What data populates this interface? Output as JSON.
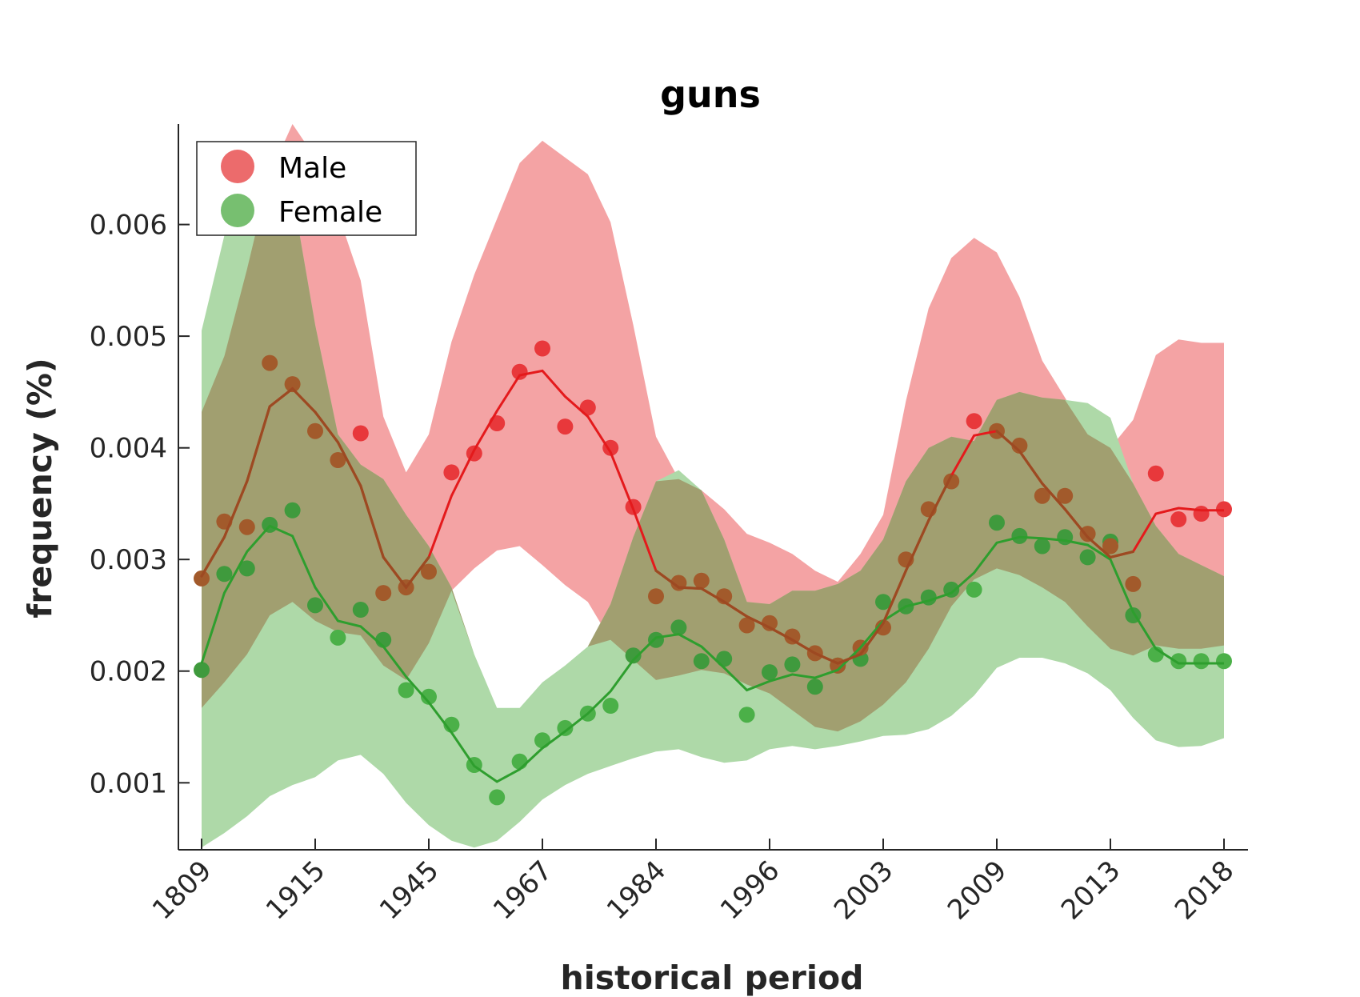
{
  "chart_data": {
    "type": "line",
    "title": "guns",
    "xlabel": "historical period",
    "ylabel": "frequency (%)",
    "ylim": [
      0.0004,
      0.0069
    ],
    "y_ticks": [
      "0.001",
      "0.002",
      "0.003",
      "0.004",
      "0.005",
      "0.006"
    ],
    "y_tick_values": [
      0.001,
      0.002,
      0.003,
      0.004,
      0.005,
      0.006
    ],
    "x_tick_labels": [
      "1809",
      "1915",
      "1945",
      "1967",
      "1984",
      "1996",
      "2003",
      "2009",
      "2013",
      "2018"
    ],
    "x_tick_index": [
      0,
      5,
      10,
      15,
      20,
      25,
      30,
      35,
      40,
      45
    ],
    "n_points": 46,
    "legend_position": "top-left",
    "grid": false,
    "colors": {
      "male": "#e41a1c",
      "male_band": "#f4a3a4",
      "female": "#2e9e2e",
      "female_band": "#aed9a8",
      "overlap": "#a19f70",
      "overlap_dot": "#a25a2b"
    },
    "series": [
      {
        "name": "Male",
        "color": "#e41a1c",
        "points": [
          0.00283,
          0.00334,
          0.00329,
          0.00476,
          0.00457,
          0.00415,
          0.00389,
          0.00413,
          0.0027,
          0.00275,
          0.00289,
          0.00378,
          0.00395,
          0.00422,
          0.00468,
          0.00489,
          0.00419,
          0.00436,
          0.004,
          0.00347,
          0.00267,
          0.00279,
          0.00281,
          0.00267,
          0.00241,
          0.00243,
          0.00231,
          0.00216,
          0.00205,
          0.00221,
          0.00239,
          0.003,
          0.00345,
          0.0037,
          0.00424,
          0.00415,
          0.00402,
          0.00357,
          0.00357,
          0.00323,
          0.00312,
          0.00278,
          0.00377,
          0.00336,
          0.00341,
          0.00345
        ],
        "smooth": [
          0.00285,
          0.0032,
          0.0037,
          0.00437,
          0.00453,
          0.00432,
          0.00405,
          0.00366,
          0.00302,
          0.00275,
          0.00302,
          0.00357,
          0.00398,
          0.00433,
          0.00465,
          0.00469,
          0.00446,
          0.00428,
          0.00396,
          0.00345,
          0.0029,
          0.00275,
          0.00274,
          0.00262,
          0.00249,
          0.00239,
          0.00228,
          0.00216,
          0.00207,
          0.00215,
          0.00243,
          0.0029,
          0.00335,
          0.00375,
          0.00411,
          0.00415,
          0.00397,
          0.00368,
          0.00345,
          0.0032,
          0.00302,
          0.00307,
          0.00341,
          0.00346,
          0.00344,
          0.00344
        ],
        "band_upper": [
          0.00432,
          0.00482,
          0.0056,
          0.00645,
          0.0069,
          0.0066,
          0.0061,
          0.0055,
          0.00428,
          0.00378,
          0.00412,
          0.00495,
          0.00555,
          0.00605,
          0.00655,
          0.00675,
          0.0066,
          0.00645,
          0.00602,
          0.0051,
          0.0041,
          0.00372,
          0.00362,
          0.00345,
          0.00323,
          0.00315,
          0.00305,
          0.0029,
          0.0028,
          0.00305,
          0.0034,
          0.00442,
          0.00525,
          0.0057,
          0.00588,
          0.00575,
          0.00535,
          0.00478,
          0.00445,
          0.00412,
          0.004,
          0.00425,
          0.00483,
          0.00497,
          0.00494,
          0.00494
        ],
        "band_lower": [
          0.00167,
          0.0019,
          0.00215,
          0.0025,
          0.00262,
          0.00245,
          0.00235,
          0.00232,
          0.00205,
          0.00192,
          0.00225,
          0.00272,
          0.00292,
          0.00308,
          0.00312,
          0.00295,
          0.00277,
          0.00262,
          0.00228,
          0.0021,
          0.00192,
          0.00196,
          0.00201,
          0.00198,
          0.00188,
          0.0018,
          0.00165,
          0.0015,
          0.00146,
          0.00155,
          0.0017,
          0.0019,
          0.0022,
          0.00258,
          0.00282,
          0.00292,
          0.00286,
          0.00275,
          0.00262,
          0.0024,
          0.0022,
          0.00214,
          0.00223,
          0.0022,
          0.0022,
          0.00223
        ]
      },
      {
        "name": "Female",
        "color": "#2e9e2e",
        "points": [
          0.00201,
          0.00287,
          0.00292,
          0.00331,
          0.00344,
          0.00259,
          0.0023,
          0.00255,
          0.00228,
          0.00183,
          0.00177,
          0.00152,
          0.00116,
          0.00087,
          0.00119,
          0.00138,
          0.00149,
          0.00162,
          0.00169,
          0.00214,
          0.00228,
          0.00239,
          0.00209,
          0.00211,
          0.00161,
          0.00199,
          0.00206,
          0.00186,
          0.00205,
          0.00211,
          0.00262,
          0.00258,
          0.00266,
          0.00273,
          0.00273,
          0.00333,
          0.00321,
          0.00312,
          0.0032,
          0.00302,
          0.00316,
          0.0025,
          0.00215,
          0.00209,
          0.00209,
          0.00209
        ],
        "smooth": [
          0.00207,
          0.0027,
          0.00307,
          0.0033,
          0.00321,
          0.00275,
          0.00245,
          0.0024,
          0.00222,
          0.00195,
          0.00172,
          0.00145,
          0.00115,
          0.00101,
          0.00112,
          0.00131,
          0.00146,
          0.00162,
          0.00182,
          0.0021,
          0.0023,
          0.00233,
          0.00222,
          0.00203,
          0.00183,
          0.00191,
          0.00197,
          0.00194,
          0.00201,
          0.00221,
          0.00245,
          0.00258,
          0.00263,
          0.0027,
          0.00288,
          0.00315,
          0.0032,
          0.00319,
          0.00317,
          0.00313,
          0.003,
          0.00253,
          0.0022,
          0.00207,
          0.00207,
          0.00207
        ],
        "band_upper": [
          0.00505,
          0.0059,
          0.0064,
          0.0066,
          0.00628,
          0.0051,
          0.00412,
          0.00385,
          0.00372,
          0.0034,
          0.00312,
          0.00275,
          0.00215,
          0.00167,
          0.00167,
          0.0019,
          0.00205,
          0.00222,
          0.0026,
          0.0032,
          0.0037,
          0.0038,
          0.00362,
          0.00318,
          0.00262,
          0.0026,
          0.00272,
          0.00272,
          0.00278,
          0.0029,
          0.00318,
          0.0037,
          0.004,
          0.0041,
          0.00406,
          0.00443,
          0.0045,
          0.00445,
          0.00443,
          0.0044,
          0.00427,
          0.00368,
          0.0033,
          0.00305,
          0.00295,
          0.00285
        ],
        "band_lower": [
          0.00042,
          0.00055,
          0.0007,
          0.00088,
          0.00098,
          0.00105,
          0.0012,
          0.00125,
          0.00108,
          0.00082,
          0.00062,
          0.00048,
          0.00042,
          0.00048,
          0.00065,
          0.00085,
          0.00098,
          0.00108,
          0.00115,
          0.00122,
          0.00128,
          0.0013,
          0.00123,
          0.00118,
          0.0012,
          0.0013,
          0.00133,
          0.0013,
          0.00133,
          0.00137,
          0.00142,
          0.00143,
          0.00148,
          0.0016,
          0.00178,
          0.00203,
          0.00212,
          0.00212,
          0.00207,
          0.00198,
          0.00183,
          0.00158,
          0.00138,
          0.00132,
          0.00133,
          0.0014
        ]
      }
    ]
  }
}
